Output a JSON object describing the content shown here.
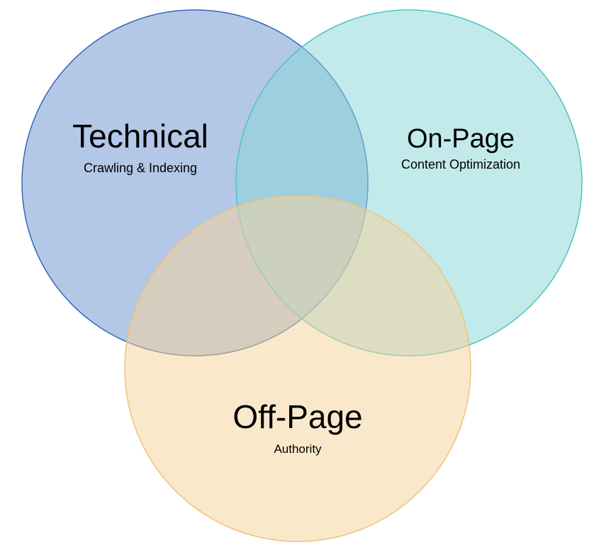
{
  "diagram": {
    "type": "venn",
    "sets": [
      {
        "id": "technical",
        "title": "Technical",
        "subtitle": "Crawling & Indexing",
        "fill": "#6d93d1",
        "stroke": "#3a66b7"
      },
      {
        "id": "onpage",
        "title": "On-Page",
        "subtitle": "Content Optimization",
        "fill": "#8ad7d9",
        "stroke": "#4cc3c6"
      },
      {
        "id": "offpage",
        "title": "Off-Page",
        "subtitle": "Authority",
        "fill": "#f6d39c",
        "stroke": "#eec37c"
      }
    ]
  }
}
